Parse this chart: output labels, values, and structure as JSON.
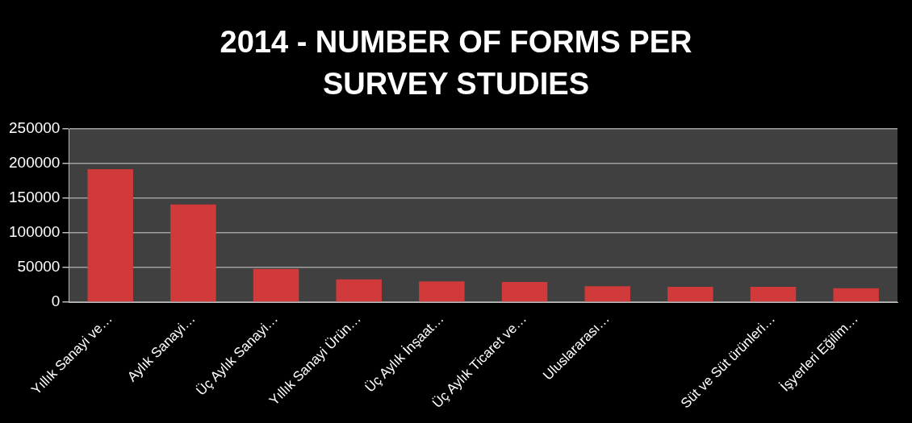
{
  "chart_data": {
    "type": "bar",
    "title": "2014 - NUMBER OF FORMS PER SURVEY STUDIES",
    "categories": [
      "Yıllık Sanayi ve…",
      "Aylık Sanayi…",
      "Üç Aylık Sanayi…",
      "Yıllık Sanayi Ürün…",
      "Üç Aylık İnşaat…",
      "Üç Aylık Ticaret ve…",
      "Uluslararası…",
      null,
      "Süt ve Süt ürünleri…",
      "İşyerleri Eğilim…"
    ],
    "values": [
      192000,
      141000,
      48000,
      33000,
      30000,
      29000,
      23000,
      22000,
      22000,
      20000
    ],
    "color": "#d03a3a",
    "ylim": [
      0,
      250000
    ],
    "yticks": [
      0,
      50000,
      100000,
      150000,
      200000,
      250000
    ],
    "grid": "y",
    "legend": false
  }
}
